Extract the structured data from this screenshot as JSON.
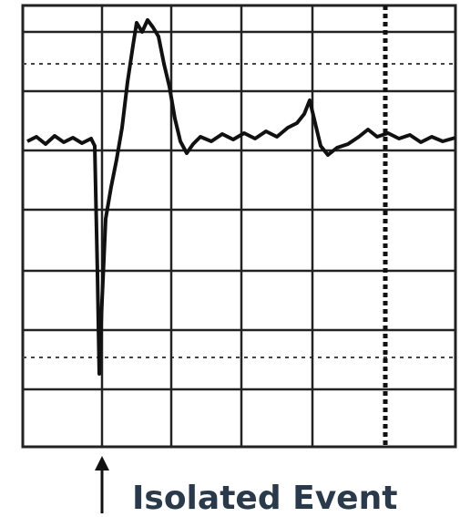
{
  "annotation": {
    "label": "Isolated Event"
  }
}
